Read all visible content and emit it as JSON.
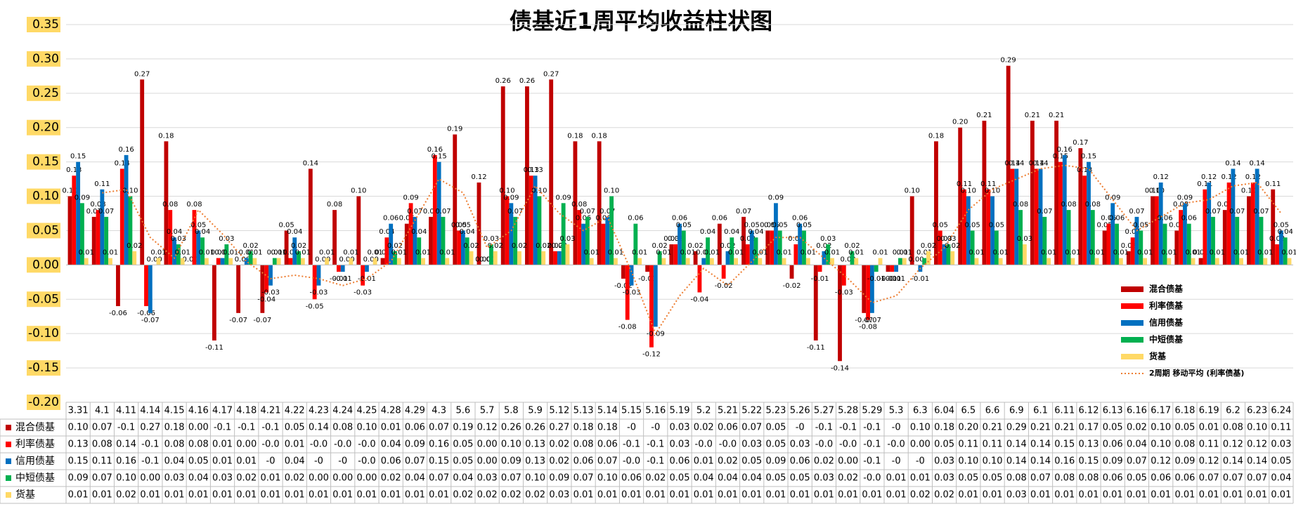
{
  "chart_data": {
    "type": "bar",
    "title": "债基近1周平均收益柱状图",
    "categories": [
      "3.31",
      "4.1",
      "4.11",
      "4.14",
      "4.15",
      "4.16",
      "4.17",
      "4.18",
      "4.21",
      "4.22",
      "4.23",
      "4.24",
      "4.25",
      "4.28",
      "4.29",
      "4.3",
      "5.6",
      "5.7",
      "5.8",
      "5.9",
      "5.12",
      "5.13",
      "5.14",
      "5.15",
      "5.16",
      "5.19",
      "5.2",
      "5.21",
      "5.22",
      "5.23",
      "5.26",
      "5.27",
      "5.28",
      "5.29",
      "5.3",
      "6.3",
      "6.04",
      "6.5",
      "6.6",
      "6.9",
      "6.1",
      "6.11",
      "6.12",
      "6.13",
      "6.16",
      "6.17",
      "6.18",
      "6.19",
      "6.2",
      "6.23",
      "6.24"
    ],
    "series": [
      {
        "name": "混合债基",
        "color": "#c00000",
        "values": [
          0.1,
          0.07,
          -0.06,
          0.27,
          0.18,
          0.0,
          -0.11,
          -0.07,
          -0.07,
          0.05,
          0.14,
          0.08,
          0.1,
          0.01,
          0.06,
          0.07,
          0.19,
          0.12,
          0.26,
          0.26,
          0.27,
          0.18,
          0.18,
          -0.02,
          -0.01,
          0.03,
          0.02,
          0.06,
          0.07,
          0.05,
          -0.02,
          -0.11,
          -0.14,
          -0.07,
          -0.01,
          0.1,
          0.18,
          0.2,
          0.21,
          0.29,
          0.21,
          0.21,
          0.17,
          0.05,
          0.02,
          0.1,
          0.05,
          0.01,
          0.08,
          0.1,
          0.11
        ],
        "value_labels": [
          "0.10",
          "0.07",
          "-0.06",
          "0.27",
          "0.18",
          "0.00",
          "-0.11",
          "-0.07",
          "-0.07",
          "0.05",
          "0.14",
          "0.08",
          "0.10",
          "0.01",
          "0.06",
          "0.07",
          "0.19",
          "0.12",
          "0.26",
          "0.26",
          "0.27",
          "0.18",
          "0.18",
          "-0.02",
          "-0.01",
          "0.03",
          "0.02",
          "0.06",
          "0.07",
          "0.05",
          "-0.02",
          "-0.11",
          "-0.14",
          "-0.07",
          "-0.01",
          "0.10",
          "0.18",
          "0.20",
          "0.21",
          "0.29",
          "0.21",
          "0.21",
          "0.17",
          "0.05",
          "0.02",
          "0.10",
          "0.05",
          "0.01",
          "0.08",
          "0.10",
          "0.11"
        ],
        "table_labels": [
          "0.10",
          "0.07",
          "-0.1",
          "0.27",
          "0.18",
          "0.00",
          "-0.1",
          "-0.1",
          "-0.1",
          "0.05",
          "0.14",
          "0.08",
          "0.10",
          "0.01",
          "0.06",
          "0.07",
          "0.19",
          "0.12",
          "0.26",
          "0.26",
          "0.27",
          "0.18",
          "0.18",
          "-0",
          "-0",
          "0.03",
          "0.02",
          "0.06",
          "0.07",
          "0.05",
          "-0",
          "-0.1",
          "-0.1",
          "-0.1",
          "-0",
          "0.10",
          "0.18",
          "0.20",
          "0.21",
          "0.29",
          "0.21",
          "0.21",
          "0.17",
          "0.05",
          "0.02",
          "0.10",
          "0.05",
          "0.01",
          "0.08",
          "0.10",
          "0.11"
        ]
      },
      {
        "name": "利率债基",
        "color": "#ff0000",
        "values": [
          0.13,
          0.08,
          0.14,
          -0.06,
          0.08,
          0.08,
          0.01,
          0.0,
          -0.04,
          0.01,
          -0.05,
          -0.01,
          -0.03,
          0.04,
          0.09,
          0.16,
          0.05,
          0.0,
          0.1,
          0.13,
          0.02,
          0.08,
          0.06,
          -0.08,
          -0.12,
          0.03,
          -0.04,
          -0.02,
          0.03,
          0.05,
          0.03,
          -0.01,
          -0.03,
          -0.08,
          -0.01,
          0.0,
          0.05,
          0.11,
          0.11,
          0.14,
          0.14,
          0.15,
          0.13,
          0.06,
          0.04,
          0.1,
          0.08,
          0.11,
          0.12,
          0.12,
          0.03
        ],
        "value_labels": [
          "0.13",
          "0.08",
          "0.14",
          "-0.06",
          "0.08",
          "0.08",
          "0.01",
          "0.00",
          "-0.04",
          "0.01",
          "-0.05",
          "-0.01",
          "-0.03",
          "0.04",
          "0.09",
          "0.16",
          "0.05",
          "0.00",
          "0.10",
          "0.13",
          "0.02",
          "0.08",
          "0.06",
          "-0.08",
          "-0.12",
          "0.03",
          "-0.04",
          "-0.02",
          "0.03",
          "0.05",
          "0.03",
          "-0.01",
          "-0.03",
          "-0.08",
          "-0.01",
          "0.00",
          "0.05",
          "0.11",
          "0.11",
          "0.14",
          "0.14",
          "0.15",
          "0.13",
          "0.06",
          "0.04",
          "0.10",
          "0.08",
          "0.11",
          "0.12",
          "0.12",
          "0.03"
        ],
        "table_labels": [
          "0.13",
          "0.08",
          "0.14",
          "-0.1",
          "0.08",
          "0.08",
          "0.01",
          "0.00",
          "-0.0",
          "0.01",
          "-0.0",
          "-0.0",
          "-0.0",
          "0.04",
          "0.09",
          "0.16",
          "0.05",
          "0.00",
          "0.10",
          "0.13",
          "0.02",
          "0.08",
          "0.06",
          "-0.1",
          "-0.1",
          "0.03",
          "-0.0",
          "-0.0",
          "0.03",
          "0.05",
          "0.03",
          "-0.0",
          "-0.0",
          "-0.1",
          "-0.0",
          "0.00",
          "0.05",
          "0.11",
          "0.11",
          "0.14",
          "0.14",
          "0.15",
          "0.13",
          "0.06",
          "0.04",
          "0.10",
          "0.08",
          "0.11",
          "0.12",
          "0.12",
          "0.03"
        ]
      },
      {
        "name": "信用债基",
        "color": "#0070c0",
        "values": [
          0.15,
          0.11,
          0.16,
          -0.07,
          0.04,
          0.05,
          0.01,
          0.01,
          -0.03,
          0.04,
          -0.03,
          -0.01,
          -0.01,
          0.06,
          0.07,
          0.15,
          0.05,
          0.0,
          0.09,
          0.13,
          0.02,
          0.06,
          0.07,
          -0.03,
          -0.09,
          0.06,
          0.01,
          0.02,
          0.05,
          0.09,
          0.06,
          0.02,
          0.0,
          -0.07,
          -0.01,
          -0.01,
          0.03,
          0.1,
          0.1,
          0.14,
          0.14,
          0.16,
          0.15,
          0.09,
          0.07,
          0.12,
          0.09,
          0.12,
          0.14,
          0.14,
          0.05
        ],
        "value_labels": [
          "0.15",
          "0.11",
          "0.16",
          "-0.07",
          "0.04",
          "0.05",
          "0.01",
          "0.01",
          "-0.03",
          "0.04",
          "-0.03",
          "-0.01",
          "-0.01",
          "0.06",
          "0.07",
          "0.15",
          "0.05",
          "0.00",
          "0.09",
          "0.13",
          "0.02",
          "0.06",
          "0.07",
          "-0.03",
          "-0.09",
          "0.06",
          "0.01",
          "0.02",
          "0.05",
          "0.09",
          "0.06",
          "0.02",
          "0.00",
          "-0.07",
          "-0.01",
          "-0.01",
          "0.03",
          "0.10",
          "0.10",
          "0.14",
          "0.14",
          "0.16",
          "0.15",
          "0.09",
          "0.07",
          "0.12",
          "0.09",
          "0.12",
          "0.14",
          "0.14",
          "0.05"
        ],
        "table_labels": [
          "0.15",
          "0.11",
          "0.16",
          "-0.1",
          "0.04",
          "0.05",
          "0.01",
          "0.01",
          "-0",
          "0.04",
          "-0",
          "-0",
          "-0.0",
          "0.06",
          "0.07",
          "0.15",
          "0.05",
          "0.00",
          "0.09",
          "0.13",
          "0.02",
          "0.06",
          "0.07",
          "-0.0",
          "-0.1",
          "0.06",
          "0.01",
          "0.02",
          "0.05",
          "0.09",
          "0.06",
          "0.02",
          "0.00",
          "-0.1",
          "-0",
          "-0",
          "0.03",
          "0.10",
          "0.10",
          "0.14",
          "0.14",
          "0.16",
          "0.15",
          "0.09",
          "0.07",
          "0.12",
          "0.09",
          "0.12",
          "0.14",
          "0.14",
          "0.05"
        ]
      },
      {
        "name": "中短债基",
        "color": "#00b050",
        "values": [
          0.09,
          0.07,
          0.1,
          0.0,
          0.03,
          0.04,
          0.03,
          0.02,
          0.01,
          0.02,
          0.0,
          0.0,
          0.0,
          0.02,
          0.04,
          0.07,
          0.04,
          0.03,
          0.07,
          0.1,
          0.09,
          0.07,
          0.1,
          0.06,
          0.02,
          0.05,
          0.04,
          0.04,
          0.04,
          0.05,
          0.05,
          0.03,
          0.02,
          -0.01,
          0.01,
          0.01,
          0.03,
          0.05,
          0.05,
          0.08,
          0.07,
          0.08,
          0.08,
          0.06,
          0.05,
          0.06,
          0.06,
          0.07,
          0.07,
          0.07,
          0.04
        ],
        "value_labels": [
          "0.09",
          "0.07",
          "0.10",
          "0.00",
          "0.03",
          "0.04",
          "0.03",
          "0.02",
          "0.01",
          "0.02",
          "0.00",
          "0.00",
          "0.00",
          "0.02",
          "0.04",
          "0.07",
          "0.04",
          "0.03",
          "0.07",
          "0.10",
          "0.09",
          "0.07",
          "0.10",
          "0.06",
          "0.02",
          "0.05",
          "0.04",
          "0.04",
          "0.04",
          "0.05",
          "0.05",
          "0.03",
          "0.02",
          "-0.01",
          "0.01",
          "0.01",
          "0.03",
          "0.05",
          "0.05",
          "0.08",
          "0.07",
          "0.08",
          "0.08",
          "0.06",
          "0.05",
          "0.06",
          "0.06",
          "0.07",
          "0.07",
          "0.07",
          "0.04"
        ],
        "table_labels": [
          "0.09",
          "0.07",
          "0.10",
          "0.00",
          "0.03",
          "0.04",
          "0.03",
          "0.02",
          "0.01",
          "0.02",
          "0.00",
          "0.00",
          "0.00",
          "0.02",
          "0.04",
          "0.07",
          "0.04",
          "0.03",
          "0.07",
          "0.10",
          "0.09",
          "0.07",
          "0.10",
          "0.06",
          "0.02",
          "0.05",
          "0.04",
          "0.04",
          "0.04",
          "0.05",
          "0.05",
          "0.03",
          "0.02",
          "-0.0",
          "0.01",
          "0.01",
          "0.03",
          "0.05",
          "0.05",
          "0.08",
          "0.07",
          "0.08",
          "0.08",
          "0.06",
          "0.05",
          "0.06",
          "0.06",
          "0.07",
          "0.07",
          "0.07",
          "0.04"
        ]
      },
      {
        "name": "货基",
        "color": "#ffd966",
        "values": [
          0.01,
          0.01,
          0.02,
          0.01,
          0.01,
          0.01,
          0.01,
          0.01,
          0.01,
          0.01,
          0.01,
          0.01,
          0.01,
          0.01,
          0.01,
          0.01,
          0.02,
          0.02,
          0.02,
          0.02,
          0.03,
          0.01,
          0.01,
          0.01,
          0.01,
          0.01,
          0.01,
          0.01,
          0.01,
          0.01,
          0.01,
          0.01,
          0.01,
          0.01,
          0.01,
          0.02,
          0.02,
          0.01,
          0.01,
          0.03,
          0.01,
          0.01,
          0.01,
          0.01,
          0.01,
          0.01,
          0.01,
          0.01,
          0.01,
          0.01,
          0.01
        ],
        "value_labels": [
          "0.01",
          "0.01",
          "0.02",
          "0.01",
          "0.01",
          "0.01",
          "0.01",
          "0.01",
          "0.01",
          "0.01",
          "0.01",
          "0.01",
          "0.01",
          "0.01",
          "0.01",
          "0.01",
          "0.02",
          "0.02",
          "0.02",
          "0.02",
          "0.03",
          "0.01",
          "0.01",
          "0.01",
          "0.01",
          "0.01",
          "0.01",
          "0.01",
          "0.01",
          "0.01",
          "0.01",
          "0.01",
          "0.01",
          "0.01",
          "0.01",
          "0.02",
          "0.02",
          "0.01",
          "0.01",
          "0.03",
          "0.01",
          "0.01",
          "0.01",
          "0.01",
          "0.01",
          "0.01",
          "0.01",
          "0.01",
          "0.01",
          "0.01",
          "0.01"
        ],
        "table_labels": [
          "0.01",
          "0.01",
          "0.02",
          "0.01",
          "0.01",
          "0.01",
          "0.01",
          "0.01",
          "0.01",
          "0.01",
          "0.01",
          "0.01",
          "0.01",
          "0.01",
          "0.01",
          "0.01",
          "0.02",
          "0.02",
          "0.02",
          "0.02",
          "0.03",
          "0.01",
          "0.01",
          "0.01",
          "0.01",
          "0.01",
          "0.01",
          "0.01",
          "0.01",
          "0.01",
          "0.01",
          "0.01",
          "0.01",
          "0.01",
          "0.01",
          "0.02",
          "0.02",
          "0.01",
          "0.01",
          "0.03",
          "0.01",
          "0.01",
          "0.01",
          "0.01",
          "0.01",
          "0.01",
          "0.01",
          "0.01",
          "0.01",
          "0.01",
          "0.01"
        ]
      }
    ],
    "trendline": {
      "name": "2周期 移动平均 (利率债基)",
      "series": 1,
      "period": 2,
      "color": "#ed7d31"
    },
    "ylim": [
      -0.2,
      0.35
    ],
    "yticks": [
      {
        "value": -0.2,
        "label": "-0.20"
      },
      {
        "value": -0.15,
        "label": "-0.15"
      },
      {
        "value": -0.1,
        "label": "-0.10"
      },
      {
        "value": -0.05,
        "label": "-0.05"
      },
      {
        "value": 0,
        "label": "0.00"
      },
      {
        "value": 0.05,
        "label": "0.05"
      },
      {
        "value": 0.1,
        "label": "0.10"
      },
      {
        "value": 0.15,
        "label": "0.15"
      },
      {
        "value": 0.2,
        "label": "0.20"
      },
      {
        "value": 0.25,
        "label": "0.25"
      },
      {
        "value": 0.3,
        "label": "0.30"
      },
      {
        "value": 0.35,
        "label": "0.35"
      }
    ],
    "grid": true,
    "legend": "right",
    "data_table": true
  }
}
